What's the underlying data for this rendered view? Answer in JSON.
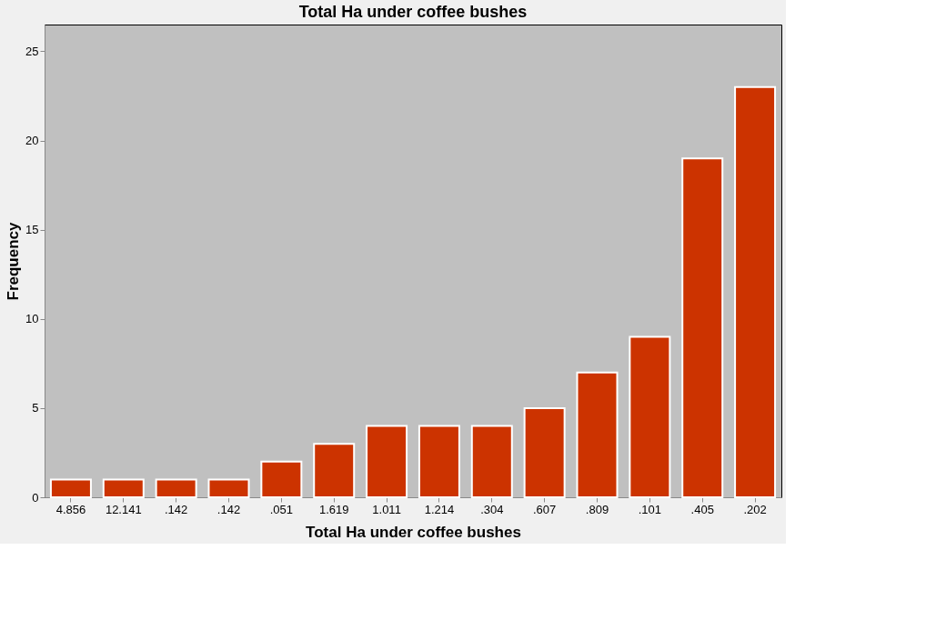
{
  "chart_data": {
    "type": "bar",
    "title": "Total Ha under coffee bushes",
    "xlabel": "Total Ha under coffee bushes",
    "ylabel": "Frequency",
    "categories": [
      "4.856",
      "12.141",
      ".142",
      ".142",
      ".051",
      "1.619",
      "1.011",
      "1.214",
      ".304",
      ".607",
      ".809",
      ".101",
      ".405",
      ".202"
    ],
    "values": [
      1,
      1,
      1,
      1,
      2,
      3,
      4,
      4,
      4,
      5,
      7,
      9,
      19,
      23
    ],
    "color": "#cc3300",
    "ylim": [
      0,
      26.5
    ],
    "yticks": [
      0,
      5,
      10,
      15,
      20,
      25
    ],
    "grid": false
  }
}
